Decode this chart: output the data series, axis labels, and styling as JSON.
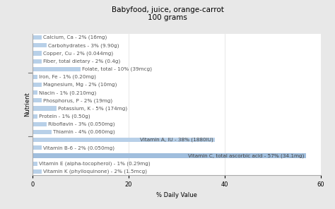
{
  "title": "Babyfood, juice, orange-carrot",
  "subtitle": "100 grams",
  "xlabel": "% Daily Value",
  "ylabel": "Nutrient",
  "xlim": [
    0,
    60
  ],
  "xticks": [
    0,
    20,
    40,
    60
  ],
  "nutrients": [
    "Calcium, Ca - 2% (16mg)",
    "Carbohydrates - 3% (9.90g)",
    "Copper, Cu - 2% (0.044mg)",
    "Fiber, total dietary - 2% (0.4g)",
    "Folate, total - 10% (39mcg)",
    "Iron, Fe - 1% (0.20mg)",
    "Magnesium, Mg - 2% (10mg)",
    "Niacin - 1% (0.210mg)",
    "Phosphorus, P - 2% (19mg)",
    "Potassium, K - 5% (174mg)",
    "Protein - 1% (0.50g)",
    "Riboflavin - 3% (0.050mg)",
    "Thiamin - 4% (0.060mg)",
    "Vitamin A, IU - 38% (1880IU)",
    "Vitamin B-6 - 2% (0.050mg)",
    "Vitamin C, total ascorbic acid - 57% (34.1mg)",
    "Vitamin E (alpha-tocopherol) - 1% (0.29mg)",
    "Vitamin K (phylloquinone) - 2% (1.5mcg)"
  ],
  "values": [
    2,
    3,
    2,
    2,
    10,
    1,
    2,
    1,
    2,
    5,
    1,
    3,
    4,
    38,
    2,
    57,
    1,
    2
  ],
  "bar_color_default": "#b8d0e8",
  "bar_color_vit_a": "#b8d0e8",
  "bar_color_vit_c": "#a0bedd",
  "highlight_indices": [
    13,
    15
  ],
  "background_color": "#e8e8e8",
  "plot_bg_color": "#ffffff",
  "separator_after": [
    4,
    12
  ],
  "text_color": "#555555",
  "title_fontsize": 7.5,
  "tick_fontsize": 6,
  "label_fontsize": 5.2,
  "bar_height": 0.55
}
